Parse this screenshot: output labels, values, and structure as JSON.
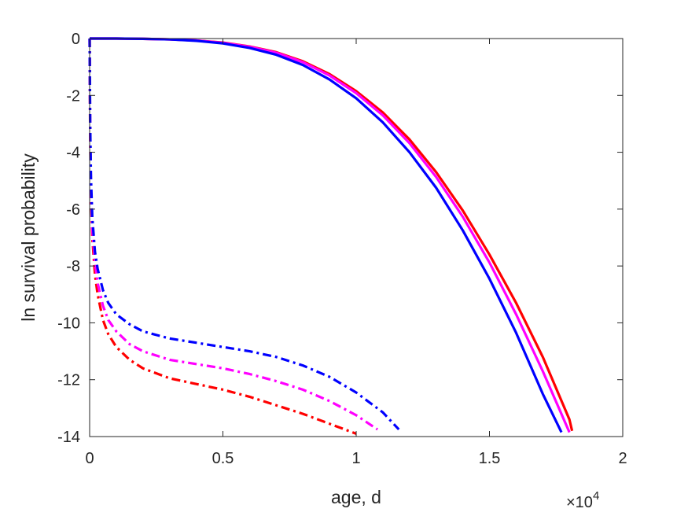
{
  "chart_data": {
    "type": "line",
    "title": "",
    "xlabel": "age, d",
    "ylabel": "ln survival probability",
    "x_multiplier_label": {
      "base": "×10",
      "exponent": "4"
    },
    "xlim": [
      0,
      2
    ],
    "ylim": [
      -14,
      0
    ],
    "x_ticks": [
      "0",
      "0.5",
      "1",
      "1.5",
      "2"
    ],
    "x_tick_values": [
      0,
      0.5,
      1,
      1.5,
      2
    ],
    "y_ticks": [
      "0",
      "-2",
      "-4",
      "-6",
      "-8",
      "-10",
      "-12",
      "-14"
    ],
    "y_tick_values": [
      0,
      -2,
      -4,
      -6,
      -8,
      -10,
      -12,
      -14
    ],
    "grid": false,
    "box": true,
    "series": [
      {
        "style": "solid",
        "color": "#ff0000",
        "x": [
          0,
          0.1,
          0.2,
          0.3,
          0.4,
          0.5,
          0.6,
          0.7,
          0.8,
          0.9,
          1.0,
          1.1,
          1.2,
          1.3,
          1.4,
          1.5,
          1.6,
          1.7,
          1.8,
          1.81
        ],
        "y": [
          0,
          0,
          -0.01,
          -0.03,
          -0.07,
          -0.14,
          -0.28,
          -0.48,
          -0.8,
          -1.25,
          -1.85,
          -2.6,
          -3.55,
          -4.7,
          -6.05,
          -7.6,
          -9.3,
          -11.2,
          -13.4,
          -13.8
        ]
      },
      {
        "style": "solid",
        "color": "#ff00ff",
        "x": [
          0,
          0.1,
          0.2,
          0.3,
          0.4,
          0.5,
          0.6,
          0.7,
          0.8,
          0.9,
          1.0,
          1.1,
          1.2,
          1.3,
          1.4,
          1.5,
          1.6,
          1.7,
          1.8
        ],
        "y": [
          0,
          0,
          -0.01,
          -0.03,
          -0.07,
          -0.15,
          -0.29,
          -0.5,
          -0.83,
          -1.3,
          -1.92,
          -2.7,
          -3.68,
          -4.87,
          -6.27,
          -7.88,
          -9.7,
          -11.7,
          -13.85
        ]
      },
      {
        "style": "solid",
        "color": "#0000ff",
        "x": [
          0,
          0.1,
          0.2,
          0.3,
          0.4,
          0.5,
          0.6,
          0.7,
          0.8,
          0.9,
          1.0,
          1.1,
          1.2,
          1.3,
          1.4,
          1.5,
          1.6,
          1.7,
          1.77
        ],
        "y": [
          0,
          0,
          -0.01,
          -0.03,
          -0.08,
          -0.17,
          -0.33,
          -0.57,
          -0.93,
          -1.44,
          -2.1,
          -2.95,
          -4.0,
          -5.25,
          -6.75,
          -8.45,
          -10.35,
          -12.5,
          -13.85
        ]
      },
      {
        "style": "dashdot",
        "color": "#ff0000",
        "x": [
          0,
          0.002,
          0.005,
          0.01,
          0.02,
          0.03,
          0.05,
          0.07,
          0.1,
          0.15,
          0.2,
          0.3,
          0.4,
          0.5,
          0.6,
          0.7,
          0.8,
          0.9,
          1.0
        ],
        "y": [
          0,
          -3.5,
          -5.5,
          -7.0,
          -8.3,
          -9.0,
          -9.9,
          -10.4,
          -10.85,
          -11.3,
          -11.6,
          -11.95,
          -12.15,
          -12.35,
          -12.6,
          -12.9,
          -13.2,
          -13.55,
          -13.9
        ]
      },
      {
        "style": "dashdot",
        "color": "#ff00ff",
        "x": [
          0,
          0.002,
          0.005,
          0.01,
          0.02,
          0.03,
          0.05,
          0.07,
          0.1,
          0.15,
          0.2,
          0.3,
          0.4,
          0.5,
          0.6,
          0.7,
          0.8,
          0.9,
          1.0,
          1.08
        ],
        "y": [
          0,
          -3.3,
          -5.2,
          -6.7,
          -7.9,
          -8.6,
          -9.4,
          -9.9,
          -10.3,
          -10.75,
          -11.0,
          -11.3,
          -11.45,
          -11.6,
          -11.8,
          -12.05,
          -12.35,
          -12.75,
          -13.25,
          -13.75
        ]
      },
      {
        "style": "dashdot",
        "color": "#0000ff",
        "x": [
          0,
          0.002,
          0.005,
          0.01,
          0.02,
          0.03,
          0.05,
          0.07,
          0.1,
          0.15,
          0.2,
          0.3,
          0.4,
          0.5,
          0.6,
          0.7,
          0.8,
          0.9,
          1.0,
          1.1,
          1.16
        ],
        "y": [
          0,
          -3.0,
          -4.9,
          -6.3,
          -7.5,
          -8.1,
          -8.85,
          -9.3,
          -9.7,
          -10.05,
          -10.3,
          -10.55,
          -10.7,
          -10.85,
          -11.0,
          -11.2,
          -11.5,
          -11.9,
          -12.45,
          -13.15,
          -13.75
        ]
      }
    ]
  }
}
